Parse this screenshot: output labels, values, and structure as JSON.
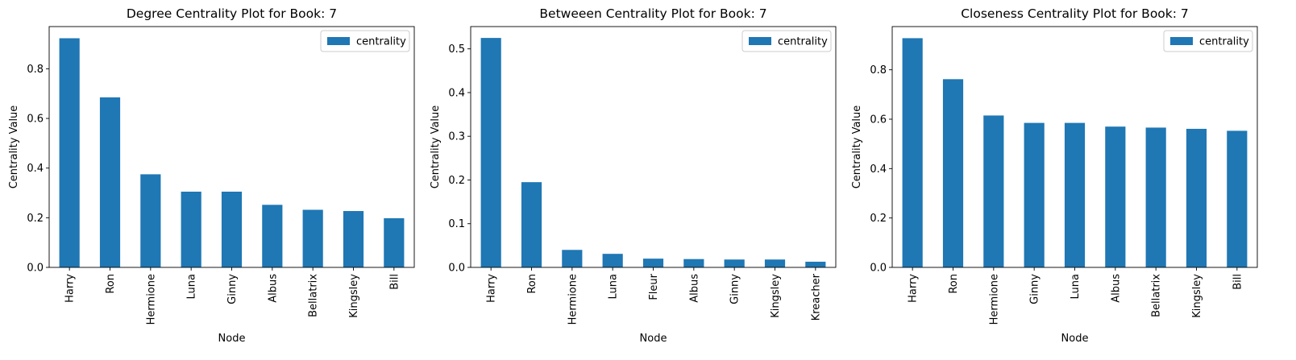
{
  "chart_data": [
    {
      "type": "bar",
      "title": "Degree Centrality Plot for Book: 7",
      "xlabel": "Node",
      "ylabel": "Centrality Value",
      "categories": [
        "Harry",
        "Ron",
        "Hermione",
        "Luna",
        "Ginny",
        "Albus",
        "Bellatrix",
        "Kingsley",
        "Bill"
      ],
      "series": [
        {
          "name": "centrality",
          "values": [
            0.923,
            0.685,
            0.375,
            0.305,
            0.305,
            0.252,
            0.232,
            0.227,
            0.198
          ]
        }
      ],
      "ylim": [
        0,
        0.97
      ],
      "yticks": [
        0.0,
        0.2,
        0.4,
        0.6,
        0.8
      ],
      "ytick_labels": [
        "0.0",
        "0.2",
        "0.4",
        "0.6",
        "0.8"
      ],
      "legend": "top-right",
      "grid": false,
      "color": "#1f77b4"
    },
    {
      "type": "bar",
      "title": "Betweeen Centrality Plot for Book: 7",
      "xlabel": "Node",
      "ylabel": "Centrality Value",
      "categories": [
        "Harry",
        "Ron",
        "Hermione",
        "Luna",
        "Fleur",
        "Albus",
        "Ginny",
        "Kingsley",
        "Kreacher"
      ],
      "series": [
        {
          "name": "centrality",
          "values": [
            0.525,
            0.195,
            0.04,
            0.031,
            0.02,
            0.019,
            0.018,
            0.018,
            0.013
          ]
        }
      ],
      "ylim": [
        0,
        0.551
      ],
      "yticks": [
        0.0,
        0.1,
        0.2,
        0.3,
        0.4,
        0.5
      ],
      "ytick_labels": [
        "0.0",
        "0.1",
        "0.2",
        "0.3",
        "0.4",
        "0.5"
      ],
      "legend": "top-right",
      "grid": false,
      "color": "#1f77b4"
    },
    {
      "type": "bar",
      "title": "Closeness Centrality Plot for Book: 7",
      "xlabel": "Node",
      "ylabel": "Centrality Value",
      "categories": [
        "Harry",
        "Ron",
        "Hermione",
        "Ginny",
        "Luna",
        "Albus",
        "Bellatrix",
        "Kingsley",
        "Bill"
      ],
      "series": [
        {
          "name": "centrality",
          "values": [
            0.928,
            0.762,
            0.615,
            0.585,
            0.585,
            0.57,
            0.566,
            0.561,
            0.553
          ]
        }
      ],
      "ylim": [
        0,
        0.975
      ],
      "yticks": [
        0.0,
        0.2,
        0.4,
        0.6,
        0.8
      ],
      "ytick_labels": [
        "0.0",
        "0.2",
        "0.4",
        "0.6",
        "0.8"
      ],
      "legend": "top-right",
      "grid": false,
      "color": "#1f77b4"
    }
  ]
}
